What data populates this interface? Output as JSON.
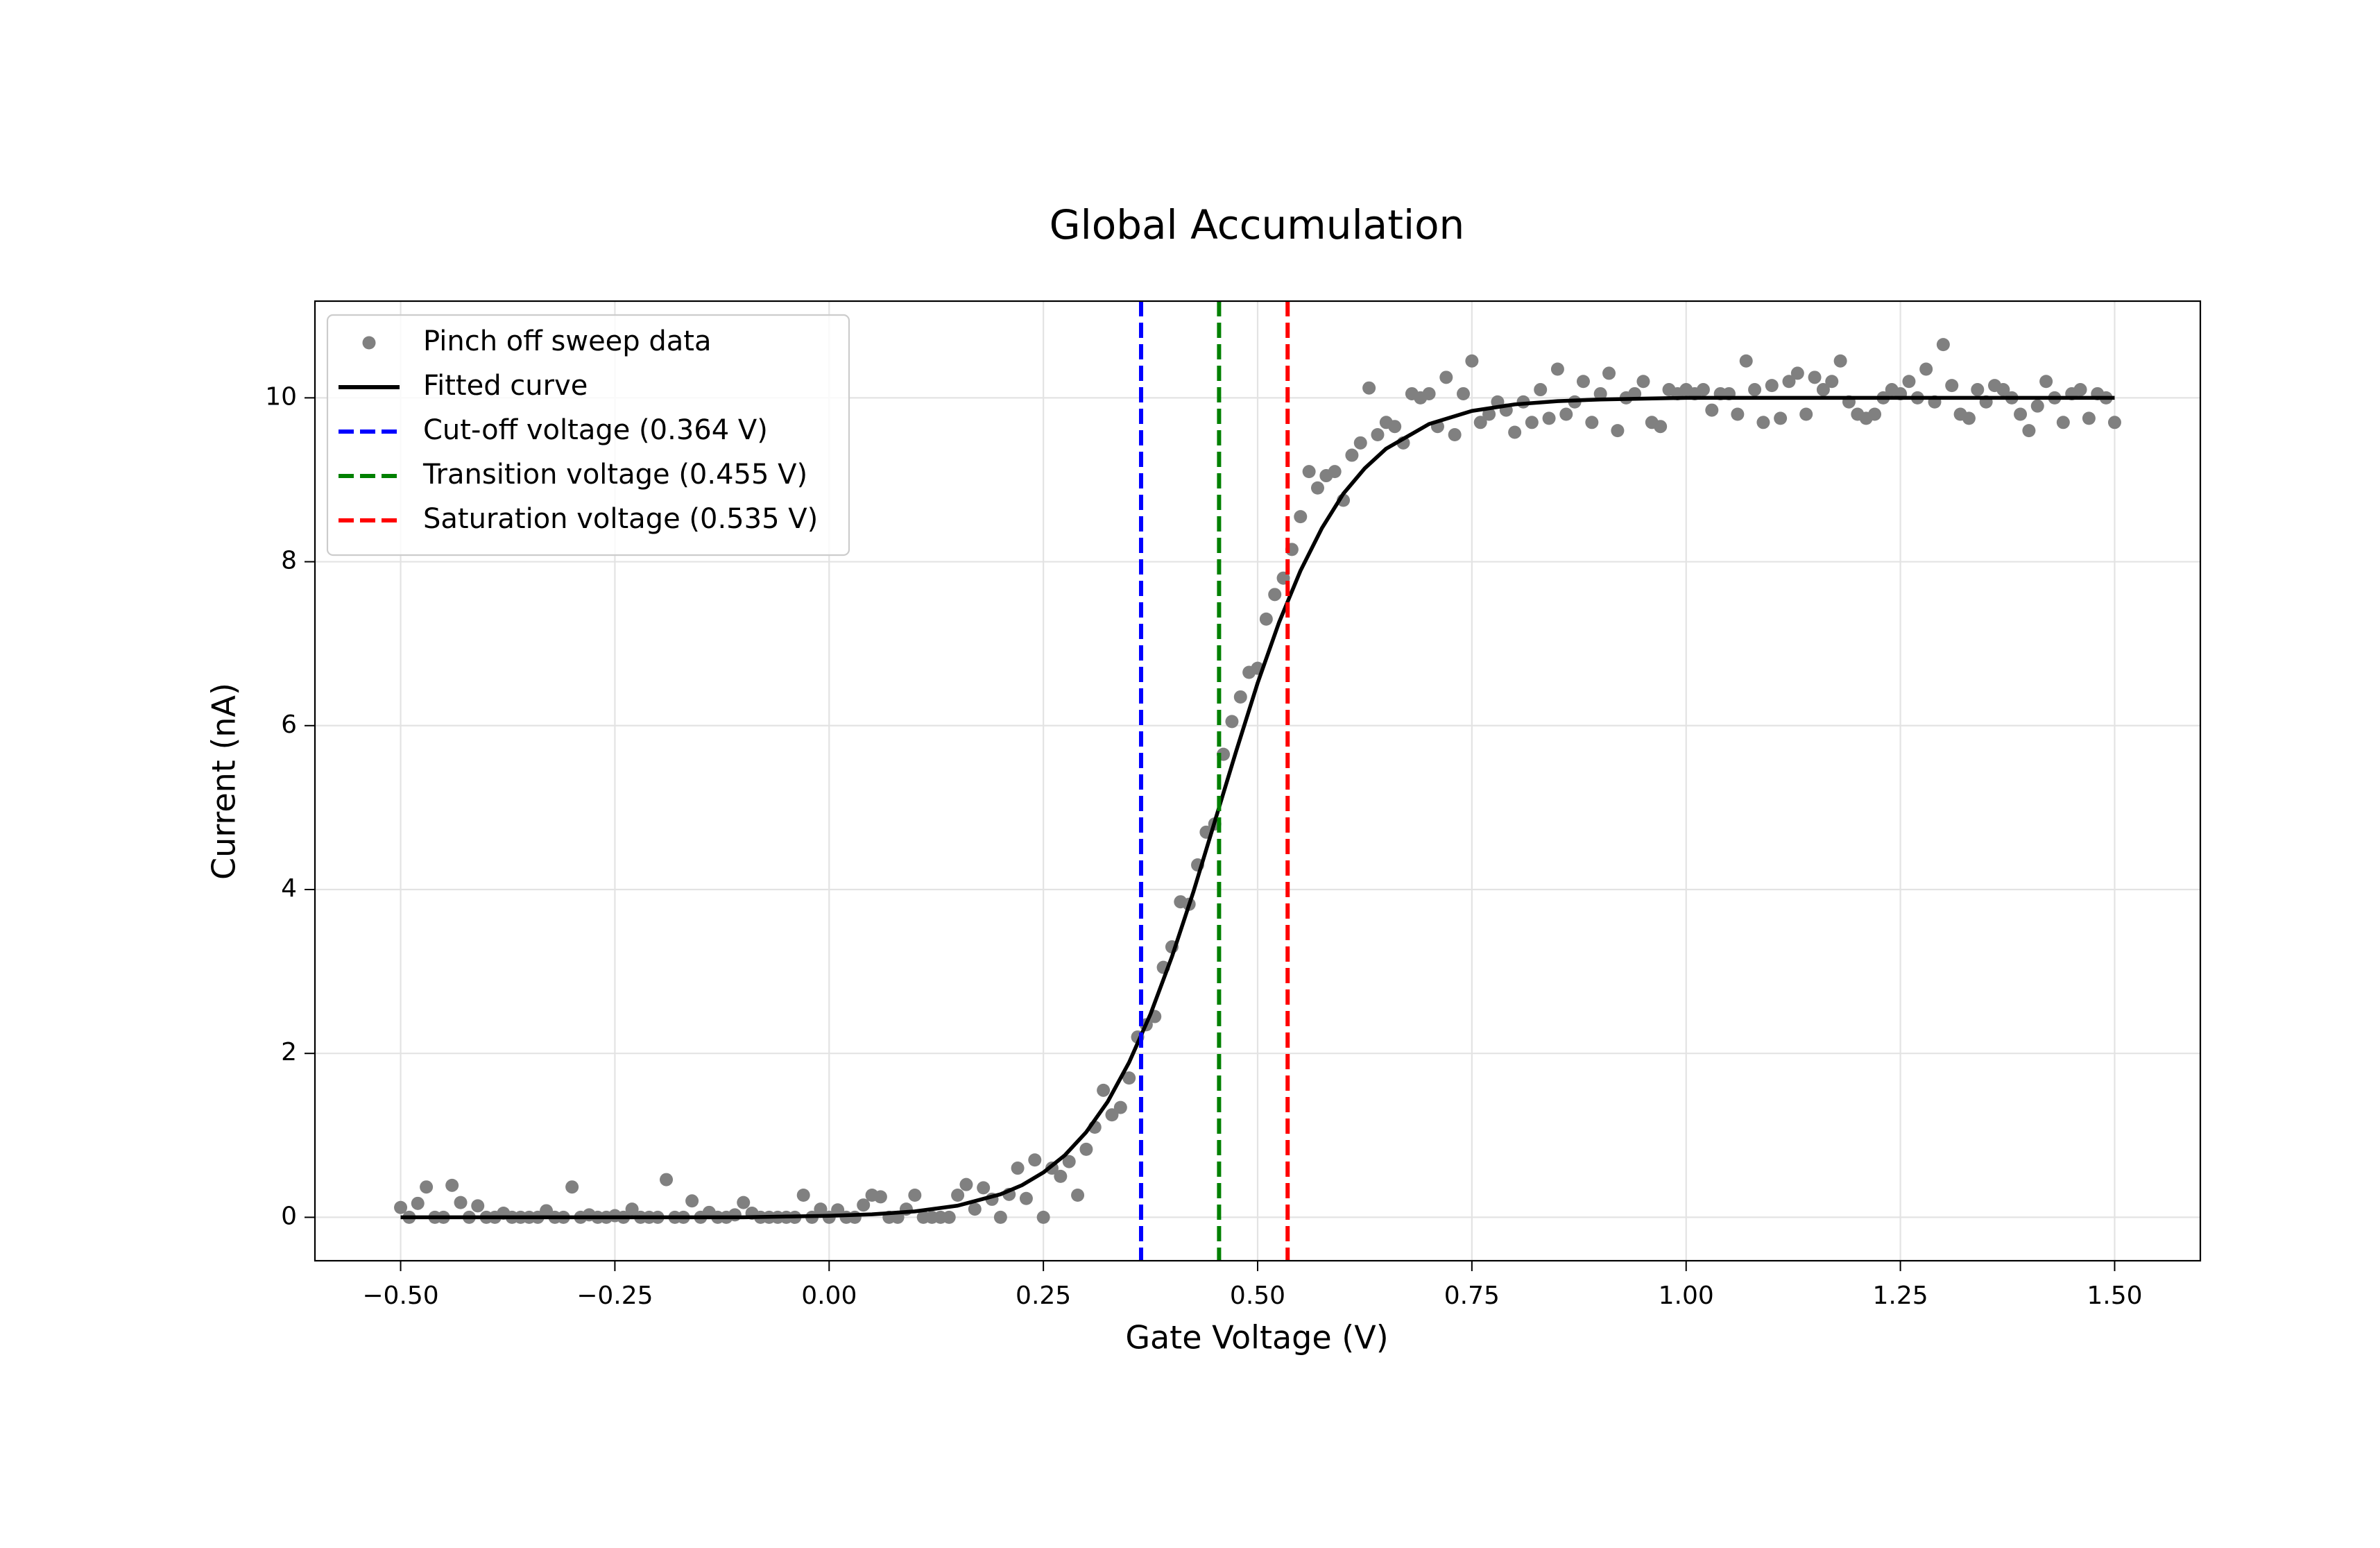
{
  "chart_data": {
    "type": "scatter",
    "title": "Global Accumulation",
    "x_label": "Gate Voltage (V)",
    "y_label": "Current (nA)",
    "xlim": [
      -0.6,
      1.6
    ],
    "ylim": [
      -0.53,
      11.18
    ],
    "xticks": [
      {
        "value": -0.5,
        "label": "−0.50"
      },
      {
        "value": -0.25,
        "label": "−0.25"
      },
      {
        "value": 0,
        "label": "0.00"
      },
      {
        "value": 0.25,
        "label": "0.25"
      },
      {
        "value": 0.5,
        "label": "0.50"
      },
      {
        "value": 0.75,
        "label": "0.75"
      },
      {
        "value": 1,
        "label": "1.00"
      },
      {
        "value": 1.25,
        "label": "1.25"
      },
      {
        "value": 1.5,
        "label": "1.50"
      }
    ],
    "yticks": [
      0,
      2,
      4,
      6,
      8,
      10
    ],
    "grid": true,
    "legend": "upper left",
    "series": [
      {
        "name": "Pinch off sweep data",
        "type": "scatter",
        "color": "#808080",
        "x": [
          -0.5,
          -0.49,
          -0.48,
          -0.47,
          -0.46,
          -0.45,
          -0.44,
          -0.43,
          -0.42,
          -0.41,
          -0.4,
          -0.39,
          -0.38,
          -0.37,
          -0.36,
          -0.35,
          -0.34,
          -0.33,
          -0.32,
          -0.31,
          -0.3,
          -0.29,
          -0.28,
          -0.27,
          -0.26,
          -0.25,
          -0.24,
          -0.23,
          -0.22,
          -0.21,
          -0.2,
          -0.19,
          -0.18,
          -0.17,
          -0.16,
          -0.15,
          -0.14,
          -0.13,
          -0.12,
          -0.11,
          -0.1,
          -0.09,
          -0.08,
          -0.07,
          -0.06,
          -0.05,
          -0.04,
          -0.03,
          -0.02,
          -0.01,
          0,
          0.01,
          0.02,
          0.03,
          0.04,
          0.05,
          0.06,
          0.07,
          0.08,
          0.09,
          0.1,
          0.11,
          0.12,
          0.13,
          0.14,
          0.15,
          0.16,
          0.17,
          0.18,
          0.19,
          0.2,
          0.21,
          0.22,
          0.23,
          0.24,
          0.25,
          0.26,
          0.27,
          0.28,
          0.29,
          0.3,
          0.31,
          0.32,
          0.33,
          0.34,
          0.35,
          0.36,
          0.37,
          0.38,
          0.39,
          0.4,
          0.41,
          0.42,
          0.43,
          0.44,
          0.45,
          0.46,
          0.47,
          0.48,
          0.49,
          0.5,
          0.51,
          0.52,
          0.53,
          0.54,
          0.55,
          0.56,
          0.57,
          0.58,
          0.59,
          0.6,
          0.61,
          0.62,
          0.63,
          0.64,
          0.65,
          0.66,
          0.67,
          0.68,
          0.69,
          0.7,
          0.71,
          0.72,
          0.73,
          0.74,
          0.75,
          0.76,
          0.77,
          0.78,
          0.79,
          0.8,
          0.81,
          0.82,
          0.83,
          0.84,
          0.85,
          0.86,
          0.87,
          0.88,
          0.89,
          0.9,
          0.91,
          0.92,
          0.93,
          0.94,
          0.95,
          0.96,
          0.97,
          0.98,
          0.99,
          1,
          1.01,
          1.02,
          1.03,
          1.04,
          1.05,
          1.06,
          1.07,
          1.08,
          1.09,
          1.1,
          1.11,
          1.12,
          1.13,
          1.14,
          1.15,
          1.16,
          1.17,
          1.18,
          1.19,
          1.2,
          1.21,
          1.22,
          1.23,
          1.24,
          1.25,
          1.26,
          1.27,
          1.28,
          1.29,
          1.3,
          1.31,
          1.32,
          1.33,
          1.34,
          1.35,
          1.36,
          1.37,
          1.38,
          1.39,
          1.4,
          1.41,
          1.42,
          1.43,
          1.44,
          1.45,
          1.46,
          1.47,
          1.48,
          1.49,
          1.5
        ],
        "values": [
          0.12,
          0,
          0.17,
          0.37,
          0,
          0,
          0.39,
          0.18,
          0,
          0.14,
          0,
          0,
          0.05,
          0,
          0,
          0,
          0,
          0.08,
          0,
          0,
          0.37,
          0,
          0.03,
          0,
          0,
          0.02,
          0,
          0.1,
          0,
          0,
          0,
          0.46,
          0,
          0,
          0.2,
          0,
          0.06,
          0,
          0,
          0.03,
          0.18,
          0.05,
          0,
          0,
          0,
          0,
          0,
          0.27,
          0,
          0.1,
          0,
          0.09,
          0,
          0,
          0.15,
          0.27,
          0.25,
          0,
          0,
          0.1,
          0.27,
          0,
          0,
          0,
          0,
          0.27,
          0.4,
          0.1,
          0.36,
          0.22,
          0,
          0.28,
          0.6,
          0.23,
          0.7,
          0,
          0.6,
          0.5,
          0.68,
          0.27,
          0.83,
          1.1,
          1.55,
          1.25,
          1.34,
          1.7,
          2.2,
          2.35,
          2.45,
          3.05,
          3.3,
          3.85,
          3.82,
          4.3,
          4.7,
          4.8,
          5.65,
          6.05,
          6.35,
          6.65,
          6.7,
          7.3,
          7.6,
          7.8,
          8.15,
          8.55,
          9.1,
          8.9,
          9.05,
          9.1,
          8.75,
          9.3,
          9.45,
          10.12,
          9.55,
          9.7,
          9.65,
          9.45,
          10.05,
          10,
          10.05,
          9.65,
          10.25,
          9.55,
          10.05,
          10.45,
          9.7,
          9.8,
          9.95,
          9.85,
          9.58,
          9.95,
          9.7,
          10.1,
          9.75,
          10.35,
          9.8,
          9.95,
          10.2,
          9.7,
          10.05,
          10.3,
          9.6,
          10,
          10.05,
          10.2,
          9.7,
          9.65,
          10.1,
          10.05,
          10.1,
          10.05,
          10.1,
          9.85,
          10.05,
          10.05,
          9.8,
          10.45,
          10.1,
          9.7,
          10.15,
          9.75,
          10.2,
          10.3,
          9.8,
          10.25,
          10.1,
          10.2,
          10.45,
          9.95,
          9.8,
          9.75,
          9.8,
          10,
          10.1,
          10.05,
          10.2,
          10,
          10.35,
          9.95,
          10.65,
          10.15,
          9.8,
          9.75,
          10.1,
          9.95,
          10.15,
          10.1,
          10,
          9.8,
          9.6,
          9.9,
          10.2,
          10,
          9.7,
          10.05,
          10.1,
          9.75,
          10.05,
          10,
          9.7
        ]
      },
      {
        "name": "Fitted curve",
        "type": "line",
        "color": "#000000",
        "x": [
          -0.5,
          -0.45,
          -0.4,
          -0.35,
          -0.3,
          -0.25,
          -0.2,
          -0.15,
          -0.1,
          -0.05,
          0,
          0.05,
          0.1,
          0.15,
          0.2,
          0.225,
          0.25,
          0.275,
          0.3,
          0.325,
          0.35,
          0.375,
          0.4,
          0.425,
          0.45,
          0.475,
          0.5,
          0.525,
          0.55,
          0.575,
          0.6,
          0.625,
          0.65,
          0.7,
          0.75,
          0.8,
          0.85,
          0.9,
          0.95,
          1,
          1.05,
          1.1,
          1.15,
          1.2,
          1.25,
          1.3,
          1.35,
          1.4,
          1.45,
          1.5
        ],
        "values": [
          0,
          0,
          0,
          0,
          0,
          0,
          0,
          0,
          0,
          0.01,
          0.018,
          0.036,
          0.072,
          0.142,
          0.281,
          0.392,
          0.547,
          0.757,
          1.04,
          1.41,
          1.89,
          2.48,
          3.18,
          3.97,
          4.83,
          5.69,
          6.52,
          7.26,
          7.89,
          8.41,
          8.83,
          9.14,
          9.38,
          9.68,
          9.84,
          9.92,
          9.96,
          9.98,
          9.99,
          10,
          10,
          10,
          10,
          10,
          10,
          10,
          10,
          10,
          10,
          10
        ]
      },
      {
        "name": "Cut-off voltage (0.364 V)",
        "type": "vline",
        "color": "#0000ff",
        "x": 0.364
      },
      {
        "name": "Transition voltage (0.455 V)",
        "type": "vline",
        "color": "#008000",
        "x": 0.455
      },
      {
        "name": "Saturation voltage (0.535 V)",
        "type": "vline",
        "color": "#ff0000",
        "x": 0.535
      }
    ]
  }
}
